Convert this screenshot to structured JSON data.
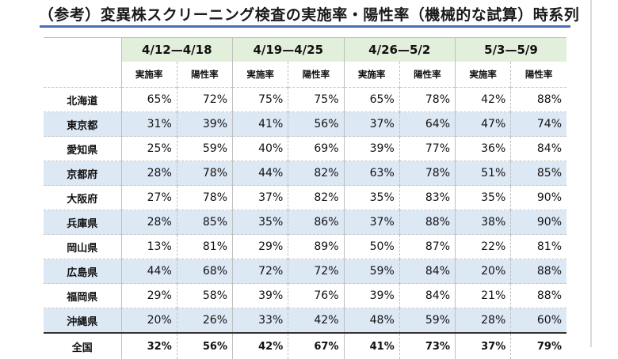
{
  "title": "（参考）変異株スクリーニング検査の実施率・陽性率（機械的な試算）時系列",
  "periods": [
    "4/12—4/18",
    "4/19—4/25",
    "4/26—5/2",
    "5/3—5/9"
  ],
  "sub_headers": [
    "実施率",
    "陽性率"
  ],
  "rows": [
    {
      "pref": "北海道",
      "values": [
        "65%",
        "72%",
        "75%",
        "75%",
        "65%",
        "78%",
        "42%",
        "88%"
      ]
    },
    {
      "pref": "東京都",
      "values": [
        "31%",
        "39%",
        "41%",
        "56%",
        "37%",
        "64%",
        "47%",
        "74%"
      ]
    },
    {
      "pref": "愛知県",
      "values": [
        "25%",
        "59%",
        "40%",
        "69%",
        "39%",
        "77%",
        "36%",
        "84%"
      ]
    },
    {
      "pref": "京都府",
      "values": [
        "28%",
        "78%",
        "44%",
        "82%",
        "63%",
        "78%",
        "51%",
        "85%"
      ]
    },
    {
      "pref": "大阪府",
      "values": [
        "27%",
        "78%",
        "37%",
        "82%",
        "35%",
        "83%",
        "35%",
        "90%"
      ]
    },
    {
      "pref": "兵庫県",
      "values": [
        "28%",
        "85%",
        "35%",
        "86%",
        "37%",
        "88%",
        "38%",
        "90%"
      ]
    },
    {
      "pref": "岡山県",
      "values": [
        "13%",
        "81%",
        "29%",
        "89%",
        "50%",
        "87%",
        "22%",
        "81%"
      ]
    },
    {
      "pref": "広島県",
      "values": [
        "44%",
        "68%",
        "72%",
        "72%",
        "59%",
        "84%",
        "20%",
        "88%"
      ]
    },
    {
      "pref": "福岡県",
      "values": [
        "29%",
        "58%",
        "39%",
        "76%",
        "39%",
        "84%",
        "21%",
        "88%"
      ]
    },
    {
      "pref": "沖縄県",
      "values": [
        "20%",
        "26%",
        "33%",
        "42%",
        "48%",
        "59%",
        "28%",
        "60%"
      ]
    }
  ],
  "total": {
    "label": "全国",
    "values": [
      "32%",
      "56%",
      "42%",
      "67%",
      "41%",
      "73%",
      "37%",
      "79%"
    ]
  },
  "colors": {
    "rule": "#4a6fb5",
    "period_bg": "#e2efda",
    "row_shade": "#dde8f5"
  }
}
